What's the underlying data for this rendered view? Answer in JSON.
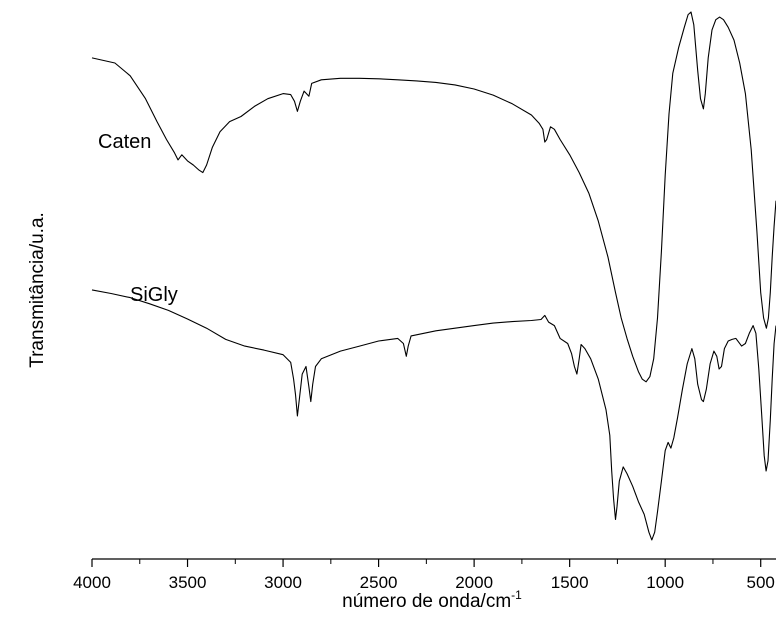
{
  "chart_data": {
    "type": "line",
    "title": "",
    "xlabel": "número de onda/cm",
    "xlabel_superscript": "-1",
    "ylabel": "Transmitância/u.a.",
    "xlim": [
      4000,
      420
    ],
    "x_reversed": true,
    "xticks": [
      4000,
      3500,
      3000,
      2500,
      2000,
      1500,
      1000,
      500
    ],
    "xtick_labels": [
      "4000",
      "3500",
      "3000",
      "2500",
      "2000",
      "1500",
      "1000",
      "500"
    ],
    "y_axis_visible": false,
    "ylim": [
      0,
      100
    ],
    "grid": false,
    "legend": "none",
    "series": [
      {
        "name": "Caten",
        "points": [
          [
            4000,
            91.0
          ],
          [
            3880,
            90.0
          ],
          [
            3800,
            87.5
          ],
          [
            3720,
            83.0
          ],
          [
            3660,
            78.5
          ],
          [
            3610,
            75.0
          ],
          [
            3570,
            72.5
          ],
          [
            3550,
            71.0
          ],
          [
            3530,
            72.0
          ],
          [
            3500,
            70.8
          ],
          [
            3470,
            70.0
          ],
          [
            3440,
            69.0
          ],
          [
            3420,
            68.5
          ],
          [
            3400,
            70.0
          ],
          [
            3370,
            73.5
          ],
          [
            3330,
            76.5
          ],
          [
            3280,
            78.5
          ],
          [
            3220,
            79.5
          ],
          [
            3150,
            81.5
          ],
          [
            3080,
            83.0
          ],
          [
            3000,
            84.0
          ],
          [
            2960,
            83.8
          ],
          [
            2940,
            82.5
          ],
          [
            2925,
            80.5
          ],
          [
            2910,
            82.5
          ],
          [
            2890,
            84.5
          ],
          [
            2865,
            83.5
          ],
          [
            2850,
            86.0
          ],
          [
            2800,
            86.7
          ],
          [
            2700,
            87.0
          ],
          [
            2600,
            87.0
          ],
          [
            2500,
            86.9
          ],
          [
            2400,
            86.7
          ],
          [
            2300,
            86.5
          ],
          [
            2200,
            86.2
          ],
          [
            2100,
            85.7
          ],
          [
            2000,
            84.9
          ],
          [
            1900,
            83.7
          ],
          [
            1800,
            82.0
          ],
          [
            1700,
            79.8
          ],
          [
            1660,
            78.2
          ],
          [
            1640,
            77.0
          ],
          [
            1630,
            74.5
          ],
          [
            1620,
            75.0
          ],
          [
            1600,
            77.5
          ],
          [
            1580,
            77.0
          ],
          [
            1550,
            75.0
          ],
          [
            1500,
            72.0
          ],
          [
            1450,
            68.5
          ],
          [
            1400,
            64.5
          ],
          [
            1350,
            59.0
          ],
          [
            1300,
            52.0
          ],
          [
            1260,
            45.0
          ],
          [
            1230,
            40.0
          ],
          [
            1200,
            36.0
          ],
          [
            1170,
            32.5
          ],
          [
            1140,
            29.5
          ],
          [
            1120,
            28.0
          ],
          [
            1100,
            27.5
          ],
          [
            1080,
            28.5
          ],
          [
            1060,
            32.0
          ],
          [
            1040,
            40.0
          ],
          [
            1020,
            53.0
          ],
          [
            1000,
            68.0
          ],
          [
            980,
            80.0
          ],
          [
            960,
            88.0
          ],
          [
            930,
            93.0
          ],
          [
            900,
            97.0
          ],
          [
            880,
            99.5
          ],
          [
            865,
            100.0
          ],
          [
            850,
            97.5
          ],
          [
            830,
            88.5
          ],
          [
            815,
            83.0
          ],
          [
            800,
            81.0
          ],
          [
            790,
            84.0
          ],
          [
            775,
            91.0
          ],
          [
            755,
            96.5
          ],
          [
            735,
            98.5
          ],
          [
            715,
            99.0
          ],
          [
            695,
            98.5
          ],
          [
            670,
            97.0
          ],
          [
            640,
            94.5
          ],
          [
            610,
            90.0
          ],
          [
            580,
            84.0
          ],
          [
            550,
            73.0
          ],
          [
            520,
            57.0
          ],
          [
            500,
            45.0
          ],
          [
            485,
            40.0
          ],
          [
            470,
            38.0
          ],
          [
            460,
            40.0
          ],
          [
            450,
            45.0
          ],
          [
            440,
            52.0
          ],
          [
            430,
            58.0
          ],
          [
            420,
            63.0
          ]
        ]
      },
      {
        "name": "SiGly",
        "points": [
          [
            4000,
            45.5
          ],
          [
            3900,
            44.8
          ],
          [
            3800,
            44.0
          ],
          [
            3700,
            42.8
          ],
          [
            3600,
            41.5
          ],
          [
            3500,
            39.8
          ],
          [
            3400,
            38.0
          ],
          [
            3300,
            35.8
          ],
          [
            3200,
            34.5
          ],
          [
            3100,
            33.7
          ],
          [
            3000,
            32.8
          ],
          [
            2960,
            31.3
          ],
          [
            2945,
            28.0
          ],
          [
            2935,
            25.0
          ],
          [
            2925,
            20.8
          ],
          [
            2915,
            24.0
          ],
          [
            2900,
            29.0
          ],
          [
            2880,
            30.5
          ],
          [
            2865,
            26.5
          ],
          [
            2855,
            23.6
          ],
          [
            2845,
            27.0
          ],
          [
            2830,
            30.5
          ],
          [
            2800,
            32.0
          ],
          [
            2700,
            33.5
          ],
          [
            2600,
            34.5
          ],
          [
            2500,
            35.5
          ],
          [
            2400,
            36.0
          ],
          [
            2370,
            35.0
          ],
          [
            2355,
            32.5
          ],
          [
            2345,
            34.5
          ],
          [
            2330,
            36.5
          ],
          [
            2200,
            37.5
          ],
          [
            2100,
            38.0
          ],
          [
            2000,
            38.5
          ],
          [
            1900,
            39.0
          ],
          [
            1800,
            39.3
          ],
          [
            1700,
            39.5
          ],
          [
            1650,
            39.7
          ],
          [
            1630,
            40.5
          ],
          [
            1610,
            39.2
          ],
          [
            1580,
            38.5
          ],
          [
            1550,
            36.0
          ],
          [
            1510,
            35.0
          ],
          [
            1490,
            33.0
          ],
          [
            1475,
            30.5
          ],
          [
            1462,
            29.0
          ],
          [
            1450,
            32.0
          ],
          [
            1440,
            34.8
          ],
          [
            1420,
            34.0
          ],
          [
            1390,
            32.0
          ],
          [
            1350,
            28.0
          ],
          [
            1310,
            22.0
          ],
          [
            1290,
            17.0
          ],
          [
            1280,
            10.0
          ],
          [
            1270,
            4.5
          ],
          [
            1260,
            0.5
          ],
          [
            1252,
            3.0
          ],
          [
            1240,
            8.0
          ],
          [
            1220,
            10.8
          ],
          [
            1200,
            9.5
          ],
          [
            1170,
            7.0
          ],
          [
            1140,
            4.0
          ],
          [
            1110,
            1.5
          ],
          [
            1085,
            -2.0
          ],
          [
            1070,
            -3.5
          ],
          [
            1055,
            -2.0
          ],
          [
            1040,
            2.0
          ],
          [
            1020,
            8.0
          ],
          [
            1000,
            14.0
          ],
          [
            985,
            15.6
          ],
          [
            970,
            14.5
          ],
          [
            955,
            16.5
          ],
          [
            935,
            20.5
          ],
          [
            910,
            26.0
          ],
          [
            885,
            31.0
          ],
          [
            860,
            34.0
          ],
          [
            845,
            32.0
          ],
          [
            830,
            27.0
          ],
          [
            810,
            24.0
          ],
          [
            800,
            23.6
          ],
          [
            785,
            26.0
          ],
          [
            765,
            31.0
          ],
          [
            745,
            33.5
          ],
          [
            730,
            32.5
          ],
          [
            718,
            30.0
          ],
          [
            705,
            30.5
          ],
          [
            690,
            34.0
          ],
          [
            670,
            35.5
          ],
          [
            650,
            35.8
          ],
          [
            630,
            36.0
          ],
          [
            600,
            34.5
          ],
          [
            580,
            35.0
          ],
          [
            560,
            37.0
          ],
          [
            540,
            38.5
          ],
          [
            525,
            37.0
          ],
          [
            510,
            30.0
          ],
          [
            495,
            21.0
          ],
          [
            482,
            13.0
          ],
          [
            472,
            10.0
          ],
          [
            462,
            12.0
          ],
          [
            450,
            20.0
          ],
          [
            440,
            28.0
          ],
          [
            430,
            35.0
          ],
          [
            420,
            38.5
          ]
        ]
      }
    ]
  }
}
